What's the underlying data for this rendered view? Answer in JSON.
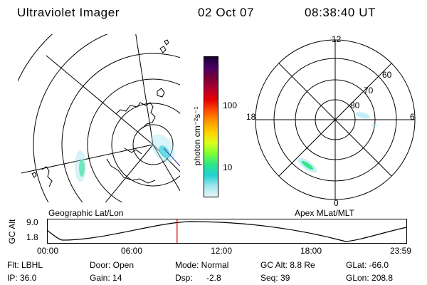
{
  "header": {
    "title": "Ultraviolet Imager",
    "date": "02 Oct 07",
    "time": "08:38:40 UT"
  },
  "geo_panel": {
    "label": "Geographic Lat/Lon"
  },
  "apex_panel": {
    "label": "Apex MLat/MLT",
    "mlt_labels": [
      "12",
      "18",
      "6",
      "0"
    ],
    "lat_labels": [
      "60",
      "70",
      "80"
    ]
  },
  "colorbar": {
    "unit_label": "photon cm⁻²s⁻¹",
    "ticks": [
      "100",
      "10"
    ],
    "colors": [
      "#1a0033",
      "#4a0066",
      "#7a0033",
      "#b3002e",
      "#e60000",
      "#ff4d00",
      "#ff9900",
      "#ffd000",
      "#d8ff1a",
      "#7aff33",
      "#2ee68a",
      "#22d1d1",
      "#9fe6ef",
      "#e8f6f8"
    ]
  },
  "altitude_strip": {
    "ylabel": "GC Alt",
    "y_ticks": [
      "9.0",
      "1.8"
    ],
    "x_ticks": [
      "00:00",
      "06:00",
      "12:00",
      "18:00",
      "23:59"
    ],
    "current_time_fraction": 0.362,
    "marker_color": "#e00000"
  },
  "status": {
    "flt_label": "Flt: LBHL",
    "ip_label": "IP: 36.0",
    "door_label": "Door: Open",
    "gain_label": "Gain: 14",
    "mode_label": "Mode: Normal",
    "dsp_label": "Dsp:",
    "dsp_value": "-2.8",
    "gcalt_label": "GC Alt: 8.8 Re",
    "seq_label": "Seq: 39",
    "glat_label": "GLat: -66.0",
    "glon_label": "GLon: 208.8"
  }
}
